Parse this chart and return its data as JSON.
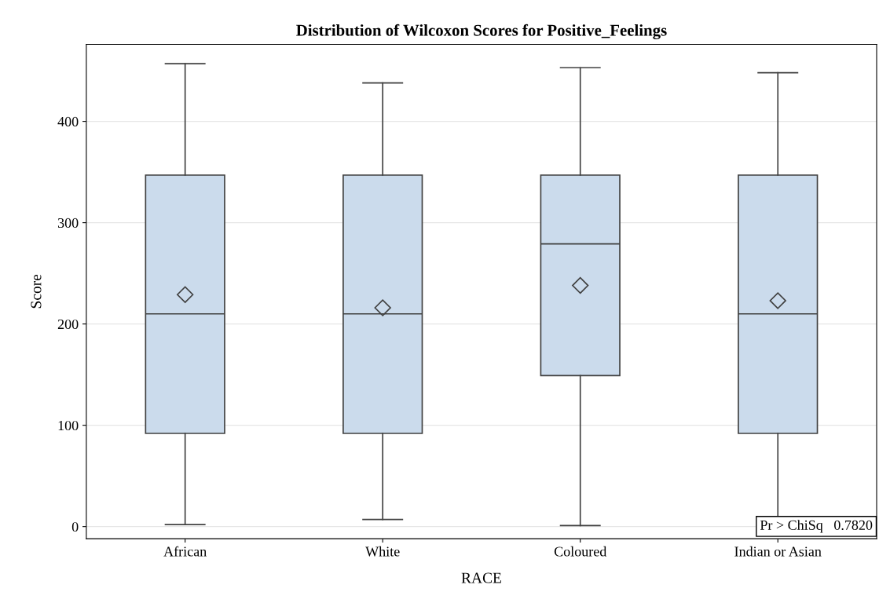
{
  "chart_data": {
    "type": "box",
    "title": "Distribution of Wilcoxon Scores for Positive_Feelings",
    "xlabel": "RACE",
    "ylabel": "Score",
    "categories": [
      "African",
      "White",
      "Coloured",
      "Indian or Asian"
    ],
    "boxes": [
      {
        "low": 2,
        "q1": 92,
        "median": 210,
        "q3": 347,
        "high": 457,
        "mean": 229
      },
      {
        "low": 7,
        "q1": 92,
        "median": 210,
        "q3": 347,
        "high": 438,
        "mean": 216
      },
      {
        "low": 1,
        "q1": 149,
        "median": 279,
        "q3": 347,
        "high": 453,
        "mean": 238
      },
      {
        "low": 3,
        "q1": 92,
        "median": 210,
        "q3": 347,
        "high": 448,
        "mean": 223
      }
    ],
    "color": "#cbdbec",
    "ylim": [
      -12,
      476
    ],
    "yticks": [
      0,
      100,
      200,
      300,
      400
    ],
    "grid": "y",
    "marker": "diamond",
    "annotations": [
      "Pr > ChiSq   0.7820"
    ]
  }
}
